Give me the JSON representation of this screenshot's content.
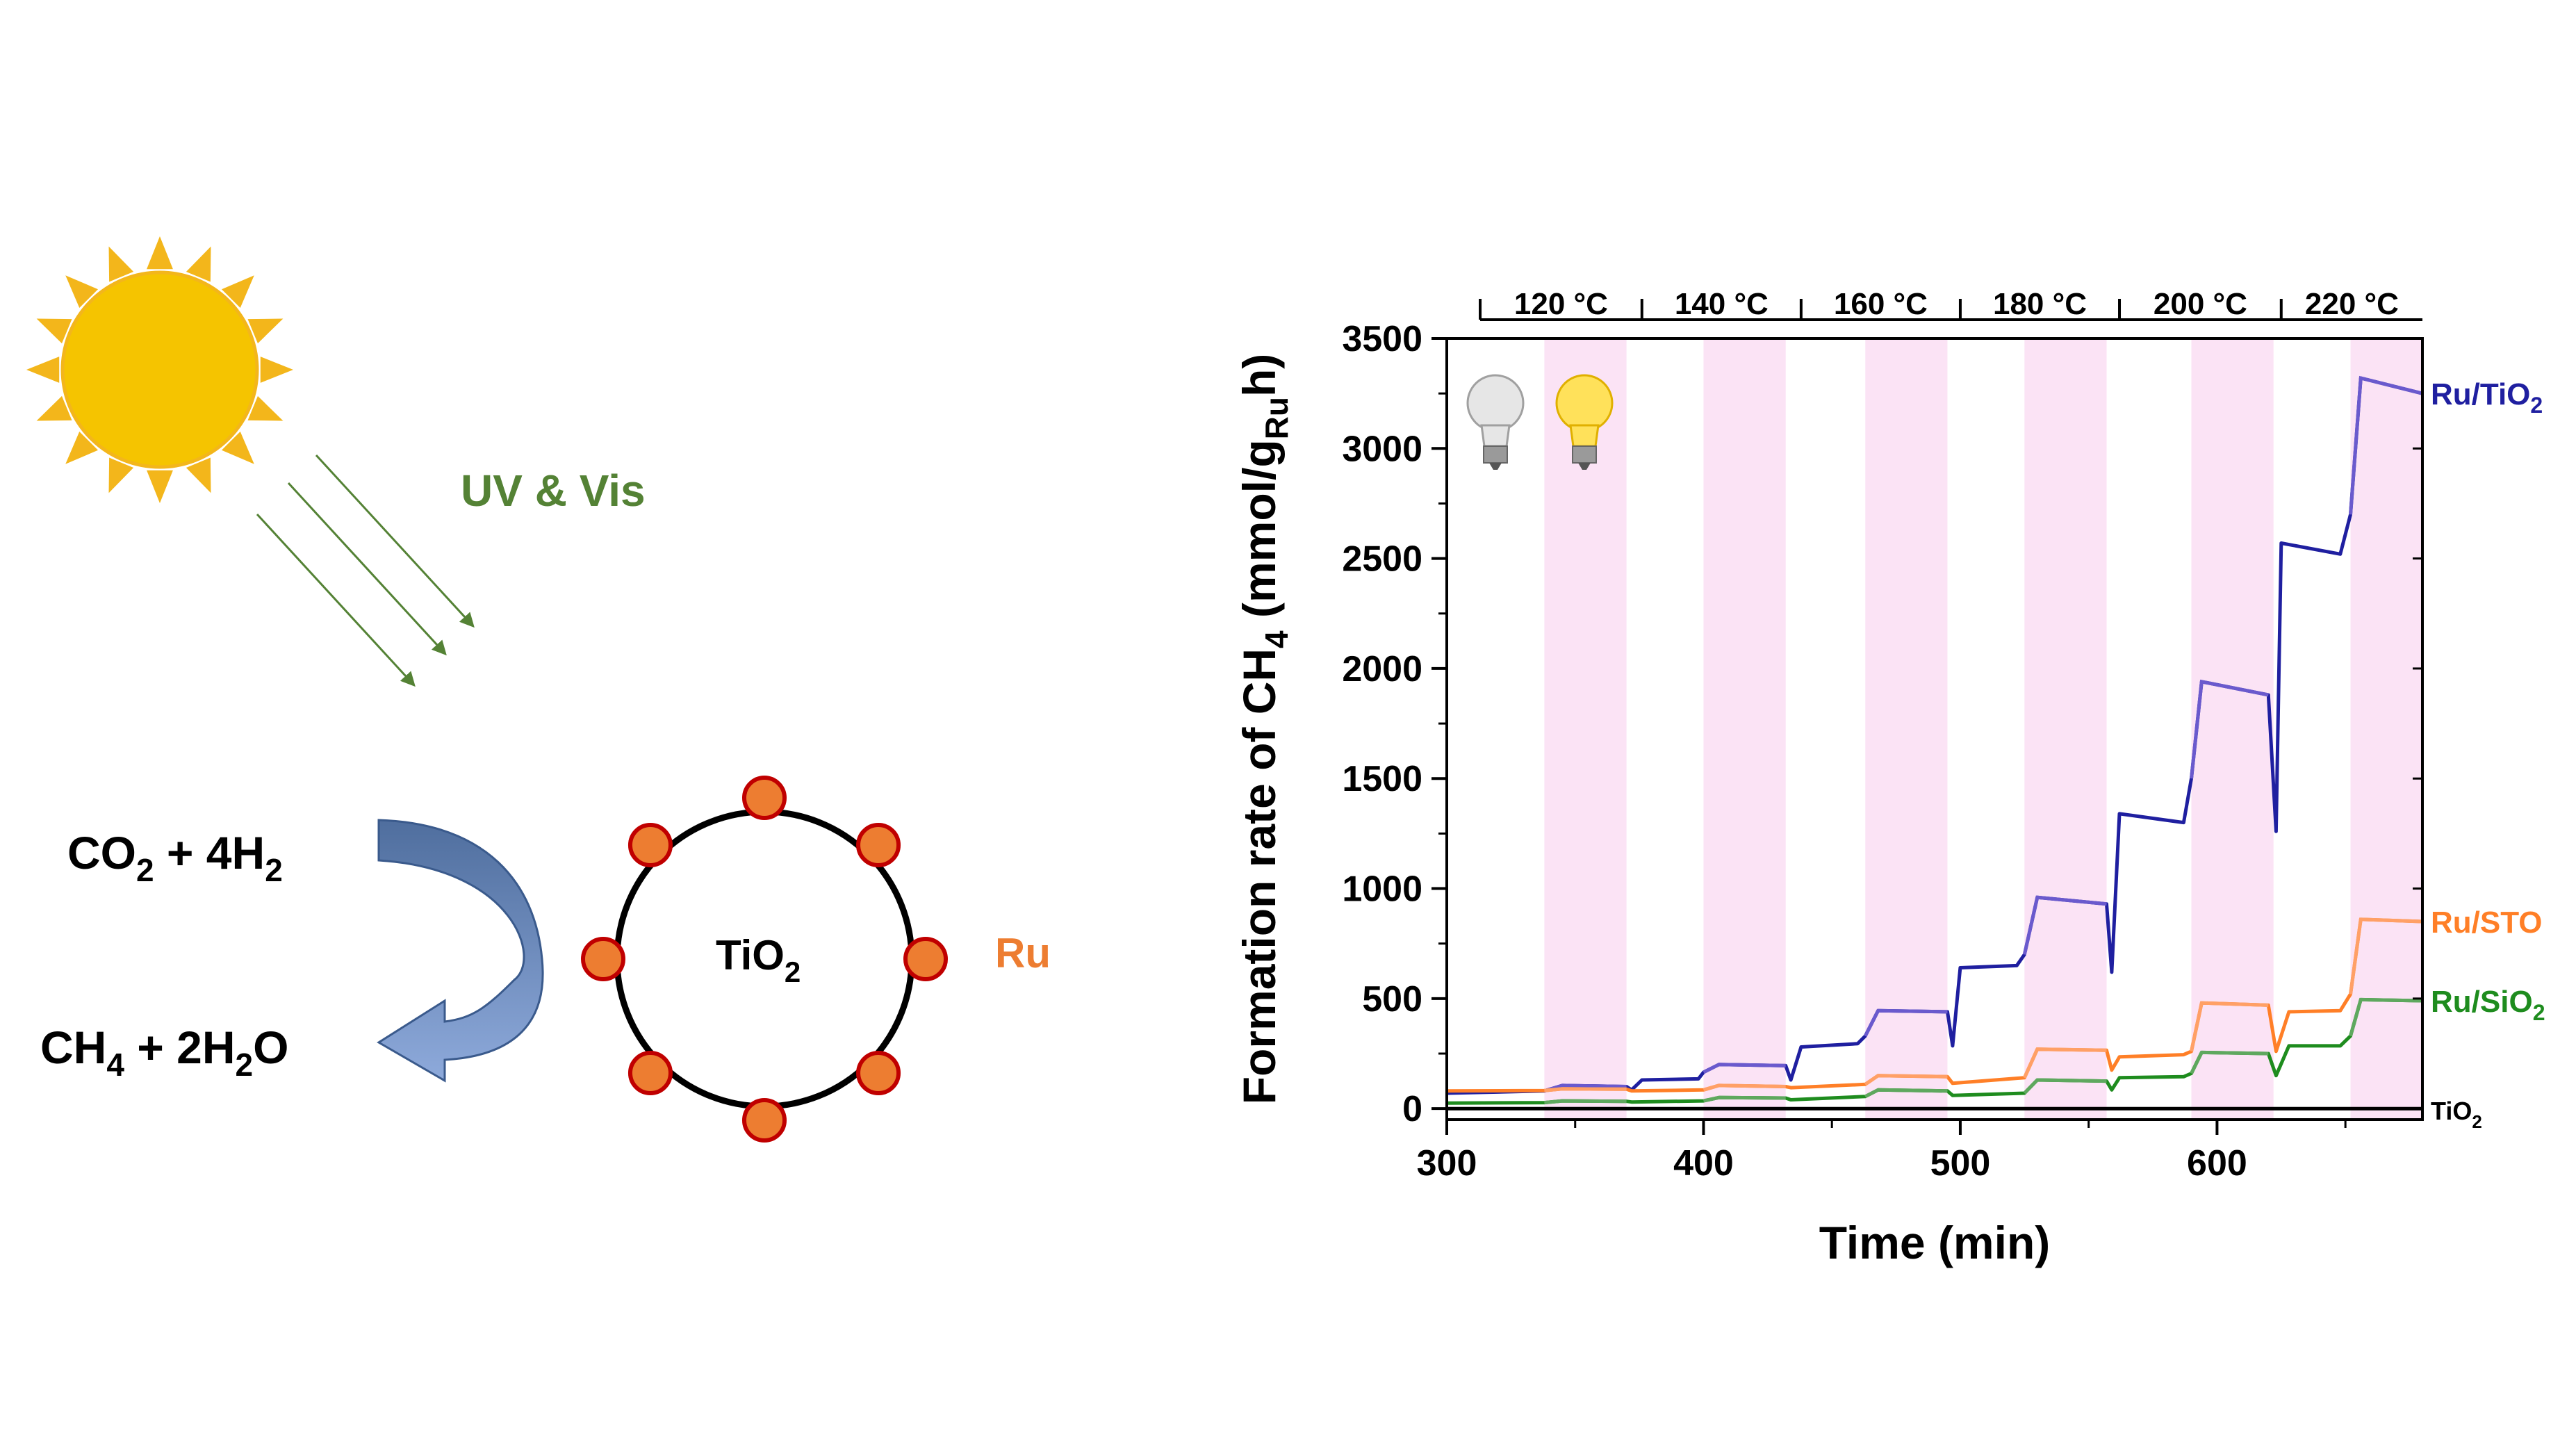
{
  "scheme": {
    "light_label": "UV & Vis",
    "reactants": {
      "a": "CO",
      "a_sub": "2",
      "b": " + 4H",
      "b_sub": "2"
    },
    "products": {
      "a": "CH",
      "a_sub": "4",
      "b": " + 2H",
      "b_sub": "2",
      "c": "O"
    },
    "support": {
      "main": "TiO",
      "sub": "2"
    },
    "metal_label": "Ru",
    "colors": {
      "sun": "#F5C400",
      "sun_rays": "#F3B61B",
      "light_arrows": "#548235",
      "light_text": "#548235",
      "curved_arrow_top": "#4F6E9E",
      "curved_arrow_bottom": "#8EAADB",
      "nanoparticle": "#ED7D31",
      "nanoparticle_edge": "#C00000",
      "metal_text": "#ED7D31"
    }
  },
  "chart_data": {
    "type": "line",
    "xlabel": "Time (min)",
    "ylabel": {
      "main": "Formation rate of CH",
      "sub1": "4",
      "mid": " (mmol/g",
      "sub2": "Ru",
      "end": "h)"
    },
    "xlim": [
      300,
      680
    ],
    "ylim": [
      -50,
      3500
    ],
    "x_ticks": [
      300,
      400,
      500,
      600
    ],
    "y_ticks": [
      0,
      500,
      1000,
      1500,
      2000,
      2500,
      3000,
      3500
    ],
    "grid": false,
    "temperature_labels": [
      "120 °C",
      "140 °C",
      "160 °C",
      "180 °C",
      "200 °C",
      "220 °C"
    ],
    "temperature_boundaries": [
      313,
      376,
      438,
      500,
      562,
      625,
      680
    ],
    "light_on_windows": [
      [
        338,
        370
      ],
      [
        400,
        432
      ],
      [
        463,
        495
      ],
      [
        525,
        557
      ],
      [
        590,
        622
      ],
      [
        652,
        680
      ]
    ],
    "light_window_color": "#FBE3F5",
    "bulb_icons": [
      "bulb-off-icon",
      "bulb-on-icon"
    ],
    "series": [
      {
        "name": "Ru/TiO",
        "name_sub": "2",
        "color": "#1F1FA0",
        "light_color": "#6A5ACD",
        "x": [
          300,
          338,
          345,
          370,
          372,
          376,
          398,
          400,
          406,
          432,
          434,
          438,
          460,
          463,
          468,
          495,
          497,
          500,
          522,
          525,
          530,
          557,
          559,
          562,
          587,
          590,
          594,
          620,
          623,
          625,
          648,
          652,
          656,
          680
        ],
        "y": [
          70,
          80,
          105,
          100,
          85,
          130,
          135,
          165,
          200,
          195,
          130,
          280,
          295,
          330,
          445,
          440,
          285,
          640,
          650,
          700,
          960,
          930,
          620,
          1340,
          1300,
          1500,
          1940,
          1880,
          1260,
          2570,
          2520,
          2700,
          3320,
          3250
        ]
      },
      {
        "name": "Ru/STO",
        "name_sub": "",
        "color": "#FF7F27",
        "light_color": "#FFA066",
        "x": [
          300,
          338,
          345,
          370,
          372,
          400,
          406,
          432,
          434,
          463,
          468,
          495,
          497,
          525,
          530,
          557,
          559,
          562,
          587,
          590,
          594,
          620,
          623,
          628,
          648,
          652,
          656,
          680
        ],
        "y": [
          80,
          82,
          90,
          88,
          80,
          85,
          105,
          100,
          95,
          110,
          150,
          145,
          115,
          140,
          270,
          265,
          175,
          235,
          245,
          260,
          480,
          470,
          260,
          440,
          445,
          520,
          860,
          850
        ]
      },
      {
        "name": "Ru/SiO",
        "name_sub": "2",
        "color": "#1E8C1E",
        "light_color": "#5EA85E",
        "x": [
          300,
          338,
          345,
          370,
          372,
          400,
          406,
          432,
          434,
          463,
          468,
          495,
          497,
          525,
          530,
          557,
          559,
          562,
          587,
          590,
          594,
          620,
          623,
          628,
          648,
          652,
          656,
          680
        ],
        "y": [
          25,
          27,
          35,
          33,
          30,
          35,
          50,
          48,
          40,
          55,
          85,
          80,
          60,
          70,
          130,
          125,
          85,
          140,
          145,
          160,
          255,
          250,
          150,
          285,
          285,
          330,
          495,
          490
        ]
      },
      {
        "name": "TiO",
        "name_sub": "2",
        "color": "#000000",
        "light_color": "#000000",
        "x": [
          300,
          680
        ],
        "y": [
          0,
          0
        ]
      }
    ]
  }
}
